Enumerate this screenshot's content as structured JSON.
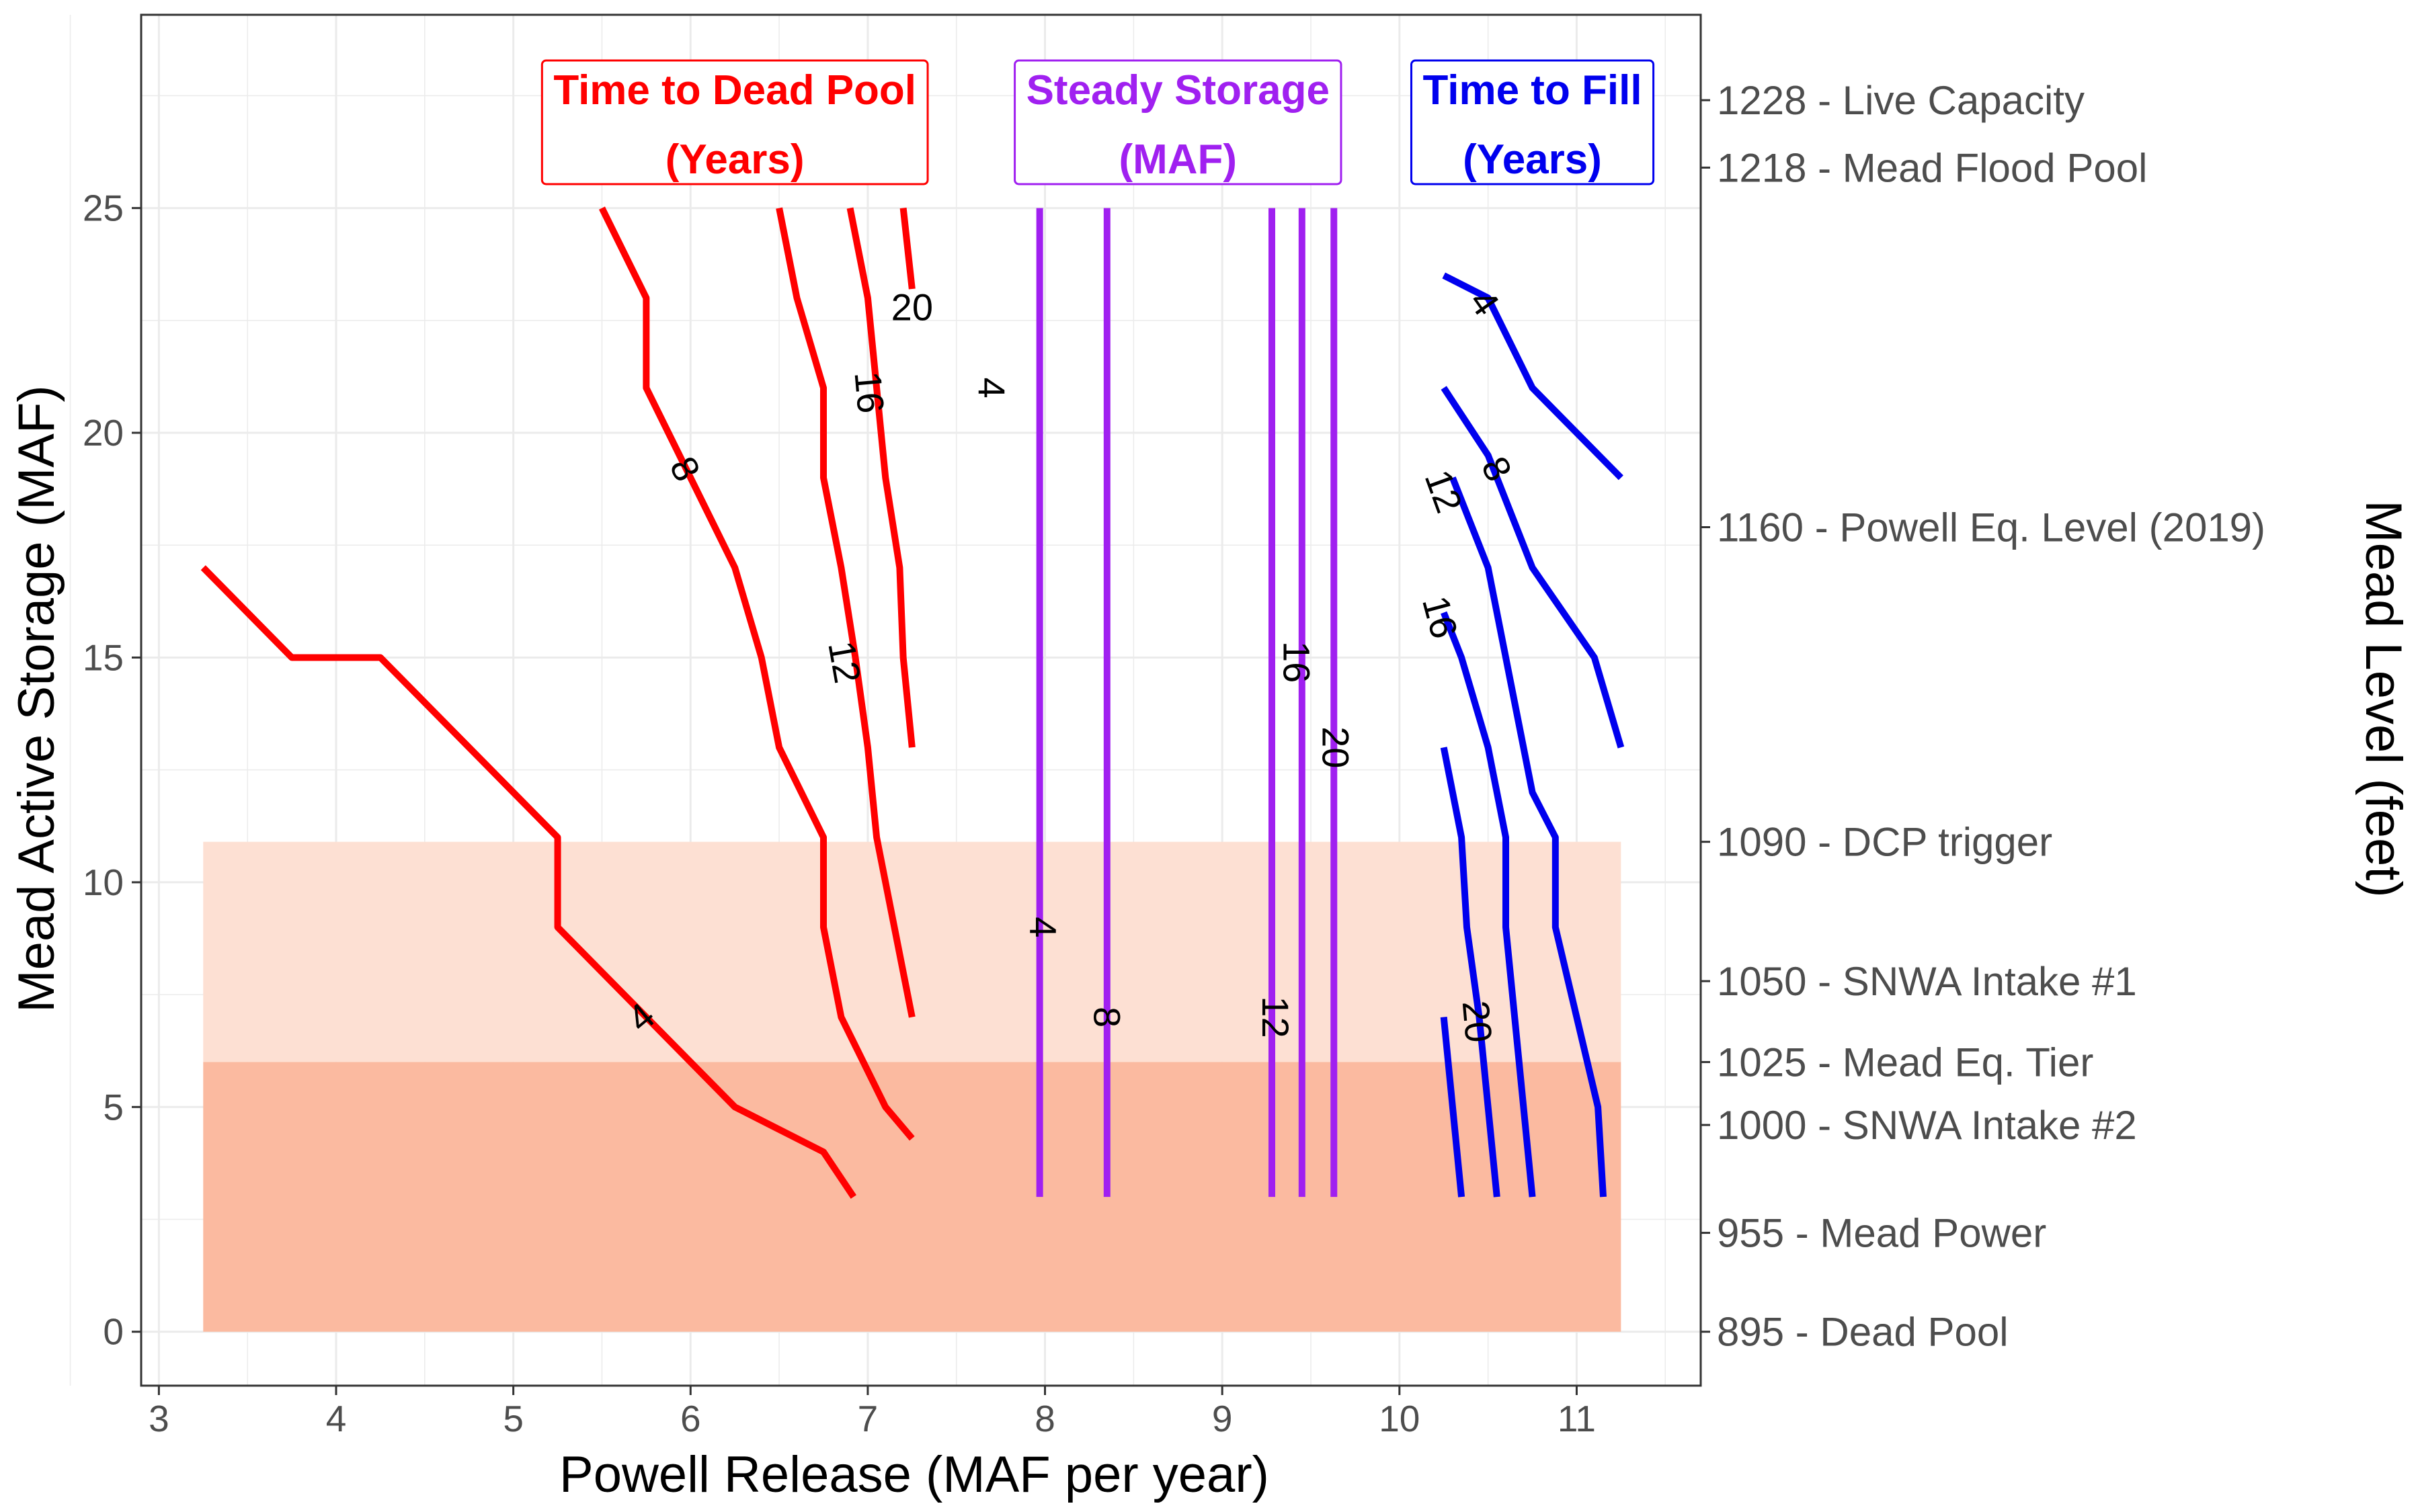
{
  "chart_data": {
    "type": "line",
    "subtype": "contour",
    "xlabel": "Powell Release  (MAF per year)",
    "ylabel": "Mead Active Storage (MAF)",
    "y2label": "Mead Level (feet)",
    "xlim": [
      2.9,
      11.7
    ],
    "ylim": [
      -1.2,
      29.3
    ],
    "xticks": [
      3,
      4,
      5,
      6,
      7,
      8,
      9,
      10,
      11
    ],
    "yticks": [
      0,
      5,
      10,
      15,
      20,
      25
    ],
    "grid": true,
    "bands": [
      {
        "ymin": 6.0,
        "ymax": 10.9,
        "xmin": 3.25,
        "xmax": 11.25,
        "color": "#fde0d3"
      },
      {
        "ymin": 0,
        "ymax": 6.0,
        "xmin": 3.25,
        "xmax": 11.25,
        "color": "#fbbaa0"
      }
    ],
    "level_labels": [
      {
        "storage": 27.4,
        "elevation": "1228",
        "name": "Live Capacity"
      },
      {
        "storage": 25.9,
        "elevation": "1218",
        "name": "Mead Flood Pool"
      },
      {
        "storage": 17.9,
        "elevation": "1160",
        "name": "Powell Eq. Level (2019)"
      },
      {
        "storage": 10.9,
        "elevation": "1090",
        "name": "DCP trigger"
      },
      {
        "storage": 7.8,
        "elevation": "1050",
        "name": "SNWA Intake #1"
      },
      {
        "storage": 6.0,
        "elevation": "1025",
        "name": "Mead Eq. Tier"
      },
      {
        "storage": 4.6,
        "elevation": "1000",
        "name": "SNWA Intake #2"
      },
      {
        "storage": 2.2,
        "elevation": "955",
        "name": "Mead Power"
      },
      {
        "storage": 0,
        "elevation": "895",
        "name": "Dead Pool"
      }
    ],
    "legend_boxes": [
      {
        "line1": "Time to Dead Pool",
        "line2": "(Years)",
        "color": "#ff0000",
        "x": 6.25
      },
      {
        "line1": "Steady Storage",
        "line2": "(MAF)",
        "color": "#a020f0",
        "x": 8.75
      },
      {
        "line1": "Time to Fill",
        "line2": "(Years)",
        "color": "#0000ee",
        "x": 10.75
      }
    ],
    "series": [
      {
        "group": "Time to Dead Pool",
        "color": "#ff0000",
        "label": "4",
        "label_at": [
          5.72,
          7.0
        ],
        "label_angle": -40,
        "points": [
          [
            3.25,
            17
          ],
          [
            3.75,
            15
          ],
          [
            4.25,
            15
          ],
          [
            5.25,
            11
          ],
          [
            5.25,
            9
          ],
          [
            6.25,
            5
          ],
          [
            6.75,
            4
          ],
          [
            6.92,
            3
          ]
        ]
      },
      {
        "group": "Time to Dead Pool",
        "color": "#ff0000",
        "label": "8",
        "label_at": [
          5.97,
          19.2
        ],
        "label_angle": 62,
        "points": [
          [
            5.5,
            25
          ],
          [
            5.75,
            23
          ],
          [
            5.75,
            21
          ],
          [
            6.25,
            17
          ],
          [
            6.4,
            15
          ],
          [
            6.5,
            13
          ],
          [
            6.75,
            11
          ],
          [
            6.75,
            9
          ],
          [
            6.85,
            7
          ],
          [
            7.1,
            5
          ],
          [
            7.25,
            4.3
          ]
        ]
      },
      {
        "group": "Time to Dead Pool",
        "color": "#ff0000",
        "label": "12",
        "label_at": [
          6.87,
          14.9
        ],
        "label_angle": 80,
        "points": [
          [
            6.5,
            25
          ],
          [
            6.6,
            23
          ],
          [
            6.75,
            21
          ],
          [
            6.75,
            19
          ],
          [
            6.85,
            17
          ],
          [
            6.93,
            15
          ],
          [
            7.0,
            13
          ],
          [
            7.05,
            11
          ],
          [
            7.15,
            9
          ],
          [
            7.25,
            7
          ]
        ]
      },
      {
        "group": "Time to Dead Pool",
        "color": "#ff0000",
        "label": "16",
        "label_at": [
          7.01,
          20.9
        ],
        "label_angle": 85,
        "points": [
          [
            6.9,
            25
          ],
          [
            7.0,
            23
          ],
          [
            7.05,
            21
          ],
          [
            7.1,
            19
          ],
          [
            7.18,
            17
          ],
          [
            7.2,
            15
          ],
          [
            7.25,
            13
          ]
        ]
      },
      {
        "group": "Time to Dead Pool",
        "color": "#ff0000",
        "label": "20",
        "label_at": [
          7.25,
          22.8
        ],
        "label_angle": 0,
        "points": [
          [
            7.2,
            25
          ],
          [
            7.25,
            23.2
          ]
        ]
      },
      {
        "group": "Steady Storage",
        "color": "#a020f0",
        "label": "4",
        "label_at": [
          7.7,
          21.0
        ],
        "label_angle": 90,
        "points": [
          [
            7.97,
            25
          ],
          [
            7.97,
            3
          ]
        ]
      },
      {
        "group": "Steady Storage",
        "color": "#a020f0",
        "label": "4",
        "label_at": [
          7.99,
          9.0
        ],
        "label_angle": 90,
        "points": [
          [
            7.97,
            25
          ],
          [
            7.97,
            3
          ]
        ]
      },
      {
        "group": "Steady Storage",
        "color": "#a020f0",
        "label": "8",
        "label_at": [
          8.35,
          7.0
        ],
        "label_angle": 90,
        "points": [
          [
            8.35,
            25
          ],
          [
            8.35,
            3
          ]
        ]
      },
      {
        "group": "Steady Storage",
        "color": "#a020f0",
        "label": "12",
        "label_at": [
          9.3,
          7.0
        ],
        "label_angle": 90,
        "points": [
          [
            9.28,
            25
          ],
          [
            9.28,
            3
          ]
        ]
      },
      {
        "group": "Steady Storage",
        "color": "#a020f0",
        "label": "16",
        "label_at": [
          9.42,
          14.9
        ],
        "label_angle": 90,
        "points": [
          [
            9.45,
            25
          ],
          [
            9.45,
            3
          ]
        ]
      },
      {
        "group": "Steady Storage",
        "color": "#a020f0",
        "label": "20",
        "label_at": [
          9.64,
          13.0
        ],
        "label_angle": 90,
        "points": [
          [
            9.63,
            25
          ],
          [
            9.63,
            3
          ]
        ]
      },
      {
        "group": "Time to Fill",
        "color": "#0000ee",
        "label": "4",
        "label_at": [
          10.48,
          22.9
        ],
        "label_angle": 55,
        "points": [
          [
            10.25,
            23.5
          ],
          [
            10.5,
            23
          ],
          [
            10.75,
            21
          ],
          [
            11.25,
            19
          ]
        ]
      },
      {
        "group": "Time to Fill",
        "color": "#0000ee",
        "label": "8",
        "label_at": [
          10.55,
          19.2
        ],
        "label_angle": 62,
        "points": [
          [
            10.25,
            21
          ],
          [
            10.5,
            19.5
          ],
          [
            10.75,
            17
          ],
          [
            11.1,
            15
          ],
          [
            11.25,
            13
          ]
        ]
      },
      {
        "group": "Time to Fill",
        "color": "#0000ee",
        "label": "12",
        "label_at": [
          10.25,
          18.7
        ],
        "label_angle": 70,
        "points": [
          [
            10.3,
            19
          ],
          [
            10.5,
            17
          ],
          [
            10.6,
            15
          ],
          [
            10.75,
            12
          ],
          [
            10.88,
            11
          ],
          [
            10.88,
            9
          ],
          [
            11.0,
            7
          ],
          [
            11.12,
            5
          ],
          [
            11.15,
            3
          ]
        ]
      },
      {
        "group": "Time to Fill",
        "color": "#0000ee",
        "label": "16",
        "label_at": [
          10.23,
          15.9
        ],
        "label_angle": 75,
        "points": [
          [
            10.25,
            16
          ],
          [
            10.35,
            15
          ],
          [
            10.5,
            13
          ],
          [
            10.6,
            11
          ],
          [
            10.6,
            9
          ],
          [
            10.65,
            7
          ],
          [
            10.7,
            5
          ],
          [
            10.75,
            3
          ]
        ]
      },
      {
        "group": "Time to Fill",
        "color": "#0000ee",
        "label": "20",
        "label_at": [
          10.44,
          6.9
        ],
        "label_angle": 85,
        "points": [
          [
            10.25,
            13
          ],
          [
            10.35,
            11
          ],
          [
            10.38,
            9
          ],
          [
            10.45,
            7
          ],
          [
            10.5,
            5
          ],
          [
            10.55,
            3
          ]
        ]
      },
      {
        "group": "Time to Fill",
        "color": "#0000ee",
        "label": "",
        "label_at": null,
        "label_angle": 0,
        "points": [
          [
            10.25,
            7
          ],
          [
            10.35,
            3
          ]
        ]
      }
    ]
  }
}
